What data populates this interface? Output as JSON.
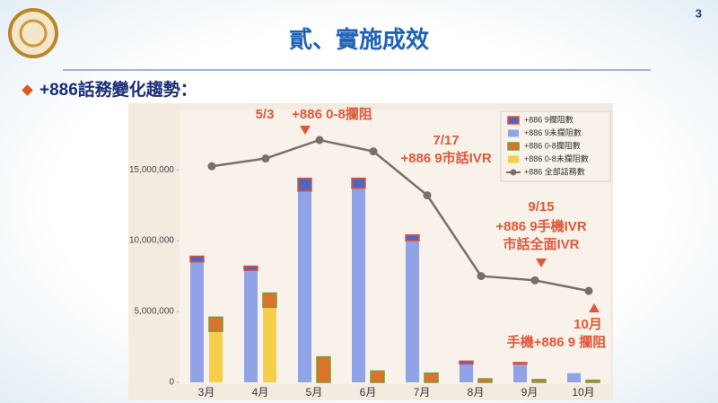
{
  "page_number": "3",
  "title": "貳、實施成效",
  "bullet": "+886話務變化趨勢：",
  "chart_data": {
    "type": "bar",
    "categories": [
      "3月",
      "4月",
      "5月",
      "6月",
      "7月",
      "8月",
      "9月",
      "10月"
    ],
    "ylim": [
      0,
      19000000
    ],
    "yticks": [
      {
        "value": 0,
        "label": "0"
      },
      {
        "value": 5000000,
        "label": "5,000,000"
      },
      {
        "value": 10000000,
        "label": "10,000,000"
      },
      {
        "value": 15000000,
        "label": "15,000,000"
      }
    ],
    "series": [
      {
        "name": "+886 9攔阻數",
        "color": "#4f66c0",
        "stroke": "#e0503a",
        "stack": 0,
        "values": [
          400000,
          300000,
          900000,
          700000,
          400000,
          200000,
          100000,
          0
        ]
      },
      {
        "name": "+886 9未攔阻數",
        "color": "#8fa3e6",
        "stack": 0,
        "values": [
          8500000,
          7900000,
          13500000,
          13700000,
          10000000,
          1300000,
          1300000,
          650000
        ]
      },
      {
        "name": "+886 0-8攔阻數",
        "color": "#d9742a",
        "stroke": "#7a9a3a",
        "stack": 1,
        "values": [
          1000000,
          1000000,
          1800000,
          800000,
          650000,
          250000,
          200000,
          150000
        ]
      },
      {
        "name": "+886 0-8未攔阻數",
        "color": "#f5cf4a",
        "stack": 1,
        "values": [
          3600000,
          5300000,
          0,
          0,
          0,
          0,
          0,
          0
        ]
      },
      {
        "name": "+886 全部話務數",
        "type": "line",
        "color": "#7a6e66",
        "values": [
          15250000,
          15800000,
          17100000,
          16300000,
          13200000,
          7500000,
          7200000,
          6450000
        ]
      }
    ],
    "annotations": [
      {
        "lines": [
          "5/3",
          "+886 0-8攔阻"
        ]
      },
      {
        "lines": [
          "7/17",
          "+886 9市話IVR"
        ]
      },
      {
        "lines": [
          "9/15",
          "+886 9手機IVR",
          "市話全面IVR"
        ]
      },
      {
        "lines": [
          "10月",
          "手機+886 9 攔阻"
        ]
      }
    ]
  }
}
